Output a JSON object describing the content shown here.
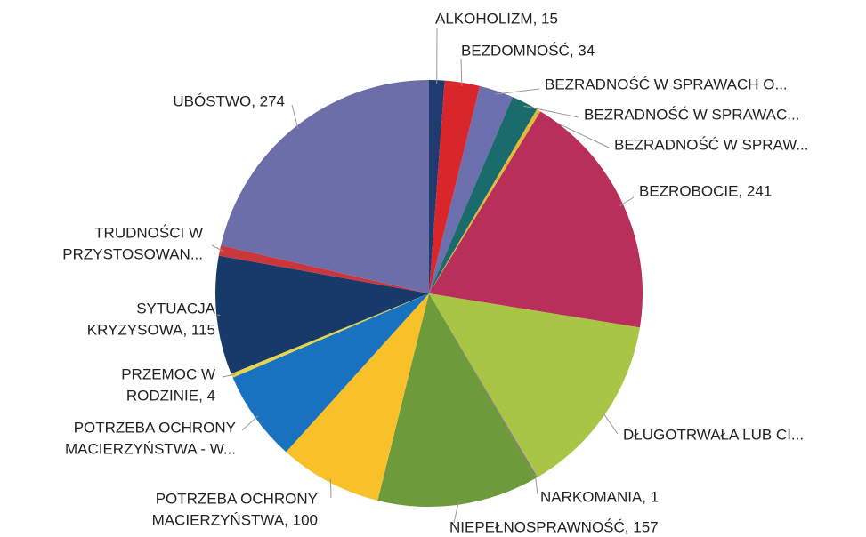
{
  "chart_data": {
    "type": "pie",
    "categories": [
      [
        "ALKOHOLIZM, 15"
      ],
      [
        "BEZDOMNOŚĆ, 34"
      ],
      [
        "BEZRADNOŚĆ W SPRAWACH O..."
      ],
      [
        "BEZRADNOŚĆ W SPRAWAC..."
      ],
      [
        "BEZRADNOŚĆ W SPRAW..."
      ],
      [
        "BEZROBOCIE, 241"
      ],
      [
        "DŁUGOTRWAŁA LUB CI..."
      ],
      [
        "NARKOMANIA, 1"
      ],
      [
        "NIEPEŁNOSPRAWNOŚĆ, 157"
      ],
      [
        "POTRZEBA OCHRONY",
        "MACIERZYŃSTWA, 100"
      ],
      [
        "POTRZEBA OCHRONY",
        "MACIERZYŃSTWA - W..."
      ],
      [
        "PRZEMOC W",
        "RODZINIE, 4"
      ],
      [
        "SYTUACJA",
        "KRYZYSOWA, 115"
      ],
      [
        "TRUDNOŚCI W",
        "PRZYSTOSOWAN..."
      ],
      [
        "UBÓSTWO, 274"
      ]
    ],
    "values": [
      15,
      34,
      33,
      26,
      4,
      241,
      179,
      1,
      157,
      100,
      88,
      4,
      115,
      10,
      274
    ],
    "colors": [
      "#1f3a6e",
      "#d9262b",
      "#6c6fae",
      "#1a6b6b",
      "#e3b93a",
      "#b82f5a",
      "#a8c545",
      "#7a5c9e",
      "#6d9a3a",
      "#f8c12a",
      "#1872c0",
      "#e6d44a",
      "#173a6a",
      "#c9373c",
      "#6b6ea8"
    ]
  }
}
